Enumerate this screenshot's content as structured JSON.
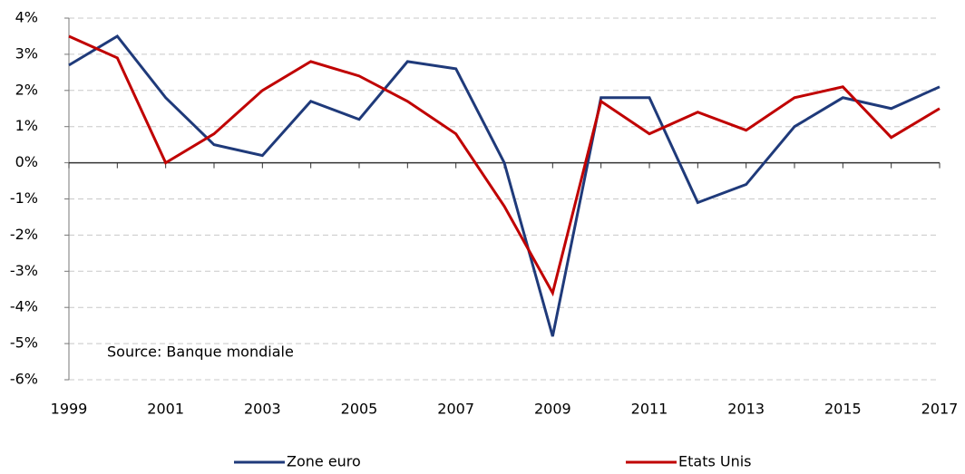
{
  "chart_data": {
    "type": "line",
    "annotation": "Source: Banque mondiale",
    "x": [
      1999,
      2000,
      2001,
      2002,
      2003,
      2004,
      2005,
      2006,
      2007,
      2008,
      2009,
      2010,
      2011,
      2012,
      2013,
      2014,
      2015,
      2016,
      2017
    ],
    "series": [
      {
        "name": "Zone euro",
        "color": "#1f3a7a",
        "values": [
          2.7,
          3.5,
          1.8,
          0.5,
          0.2,
          1.7,
          1.2,
          2.8,
          2.6,
          0,
          -4.8,
          1.8,
          1.8,
          -1.1,
          -0.6,
          1.0,
          1.8,
          1.5,
          2.1
        ]
      },
      {
        "name": "Etats Unis",
        "color": "#c00000",
        "values": [
          3.5,
          2.9,
          0,
          0.8,
          2.0,
          2.8,
          2.4,
          1.7,
          0.8,
          -1.2,
          -3.6,
          1.7,
          0.8,
          1.4,
          0.9,
          1.8,
          2.1,
          0.7,
          1.5
        ]
      }
    ],
    "xlim": [
      1999,
      2017
    ],
    "xticks": [
      1999,
      2001,
      2003,
      2005,
      2007,
      2009,
      2011,
      2013,
      2015,
      2017
    ],
    "ylim": [
      -6,
      4
    ],
    "yticks": [
      {
        "value": 4,
        "label": "4%"
      },
      {
        "value": 3,
        "label": "3%"
      },
      {
        "value": 2,
        "label": "2%"
      },
      {
        "value": 1,
        "label": "1%"
      },
      {
        "value": 0,
        "label": "0%"
      },
      {
        "value": -1,
        "label": "-1%"
      },
      {
        "value": -2,
        "label": "-2%"
      },
      {
        "value": -3,
        "label": "-3%"
      },
      {
        "value": -4,
        "label": "-4%"
      },
      {
        "value": -5,
        "label": "-5%"
      },
      {
        "value": -6,
        "label": "-6%"
      }
    ],
    "grid": true,
    "legend": "bottom"
  }
}
